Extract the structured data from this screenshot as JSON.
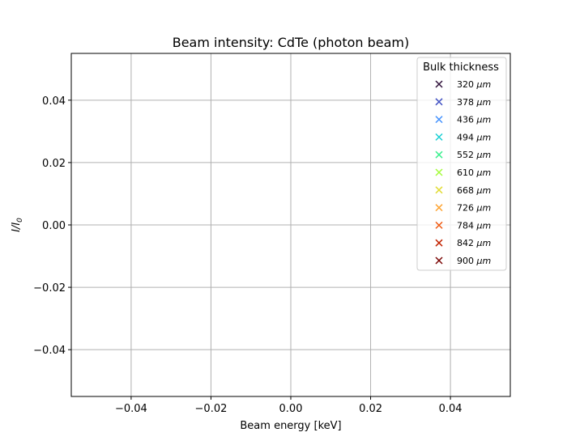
{
  "chart_data": {
    "type": "scatter",
    "title": "Beam intensity: CdTe (photon beam)",
    "xlabel": "Beam energy [keV]",
    "ylabel": "I/I0",
    "ylabel_parts": {
      "main": "I/I",
      "sub": "0"
    },
    "xlim": [
      -0.055,
      0.055
    ],
    "ylim": [
      -0.055,
      0.055
    ],
    "x_ticks": [
      -0.04,
      -0.02,
      0.0,
      0.02,
      0.04
    ],
    "x_tick_labels": [
      "−0.04",
      "−0.02",
      "0.00",
      "0.02",
      "0.04"
    ],
    "y_ticks": [
      0.04,
      0.02,
      0.0,
      -0.02,
      -0.04
    ],
    "y_tick_labels": [
      "0.04",
      "0.02",
      "0.00",
      "−0.02",
      "−0.04"
    ],
    "grid": true,
    "marker": "x",
    "legend": {
      "title": "Bulk thickness",
      "placement": "upper right",
      "unit": "μm"
    },
    "series": [
      {
        "name": "320 μm",
        "value": "320",
        "color": "#30123b",
        "x": [],
        "y": []
      },
      {
        "name": "378 μm",
        "value": "378",
        "color": "#4454c4",
        "x": [],
        "y": []
      },
      {
        "name": "436 μm",
        "value": "436",
        "color": "#4391fe",
        "x": [],
        "y": []
      },
      {
        "name": "494 μm",
        "value": "494",
        "color": "#1bcfd4",
        "x": [],
        "y": []
      },
      {
        "name": "552 μm",
        "value": "552",
        "color": "#3df08f",
        "x": [],
        "y": []
      },
      {
        "name": "610 μm",
        "value": "610",
        "color": "#a4fc3c",
        "x": [],
        "y": []
      },
      {
        "name": "668 μm",
        "value": "668",
        "color": "#e2dc38",
        "x": [],
        "y": []
      },
      {
        "name": "726 μm",
        "value": "726",
        "color": "#fea330",
        "x": [],
        "y": []
      },
      {
        "name": "784 μm",
        "value": "784",
        "color": "#ef5a11",
        "x": [],
        "y": []
      },
      {
        "name": "842 μm",
        "value": "842",
        "color": "#c32503",
        "x": [],
        "y": []
      },
      {
        "name": "900 μm",
        "value": "900",
        "color": "#7a0403",
        "x": [],
        "y": []
      }
    ]
  }
}
